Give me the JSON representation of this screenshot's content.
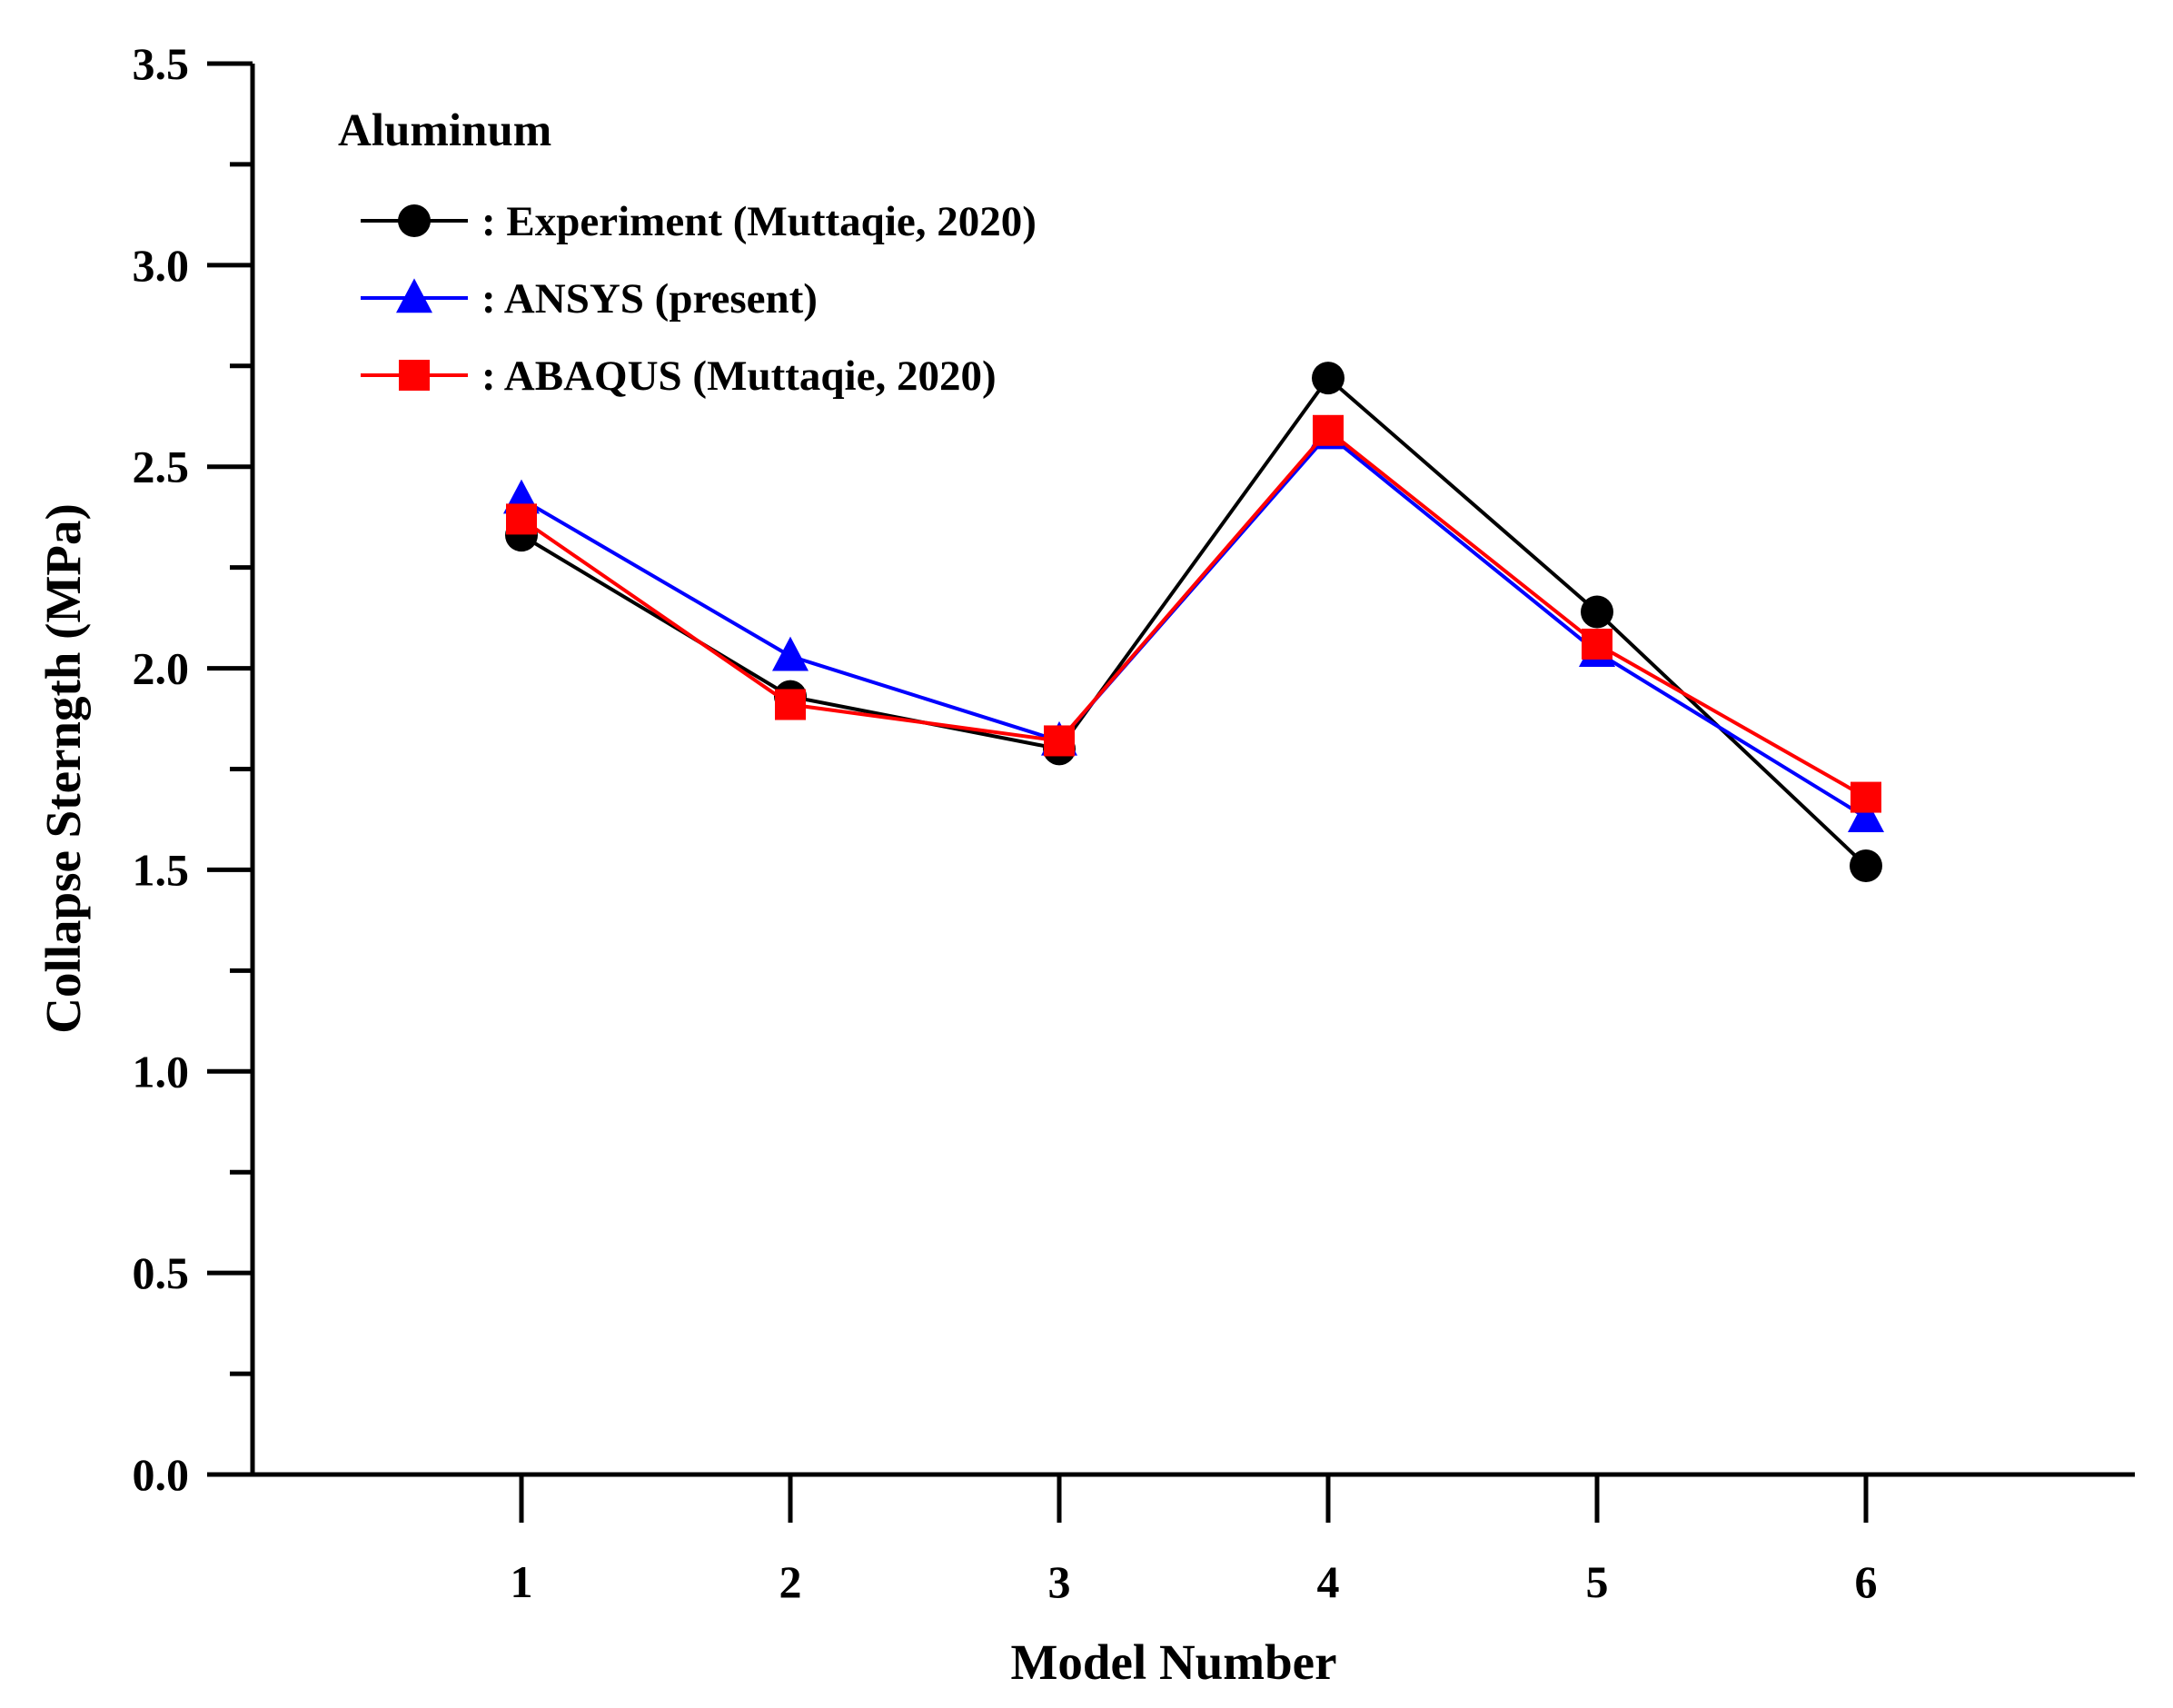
{
  "chart_data": {
    "type": "line",
    "title": "",
    "xlabel": "Model Number",
    "ylabel": "Collapse Sterngth (MPa)",
    "categories": [
      "1",
      "2",
      "3",
      "4",
      "5",
      "6"
    ],
    "x": [
      1,
      2,
      3,
      4,
      5,
      6
    ],
    "xlim": [
      0,
      7.0
    ],
    "ylim": [
      0.0,
      3.5
    ],
    "yticks": [
      "0.0",
      "0.5",
      "1.0",
      "1.5",
      "2.0",
      "2.5",
      "3.0",
      "3.5"
    ],
    "grid": false,
    "legend": {
      "title": "Aluminum",
      "placement": "top-left"
    },
    "series": [
      {
        "name": ": Experiment  (Muttaqie, 2020)",
        "marker": "circle",
        "color": "#000000",
        "values": [
          2.33,
          1.93,
          1.8,
          2.72,
          2.14,
          1.51
        ]
      },
      {
        "name": ": ANSYS (present)",
        "marker": "triangle",
        "color": "#0000ff",
        "values": [
          2.42,
          2.03,
          1.82,
          2.58,
          2.04,
          1.63
        ]
      },
      {
        "name": ": ABAQUS (Muttaqie, 2020)",
        "marker": "square",
        "color": "#ff0000",
        "values": [
          2.37,
          1.91,
          1.82,
          2.59,
          2.06,
          1.68
        ]
      }
    ]
  }
}
